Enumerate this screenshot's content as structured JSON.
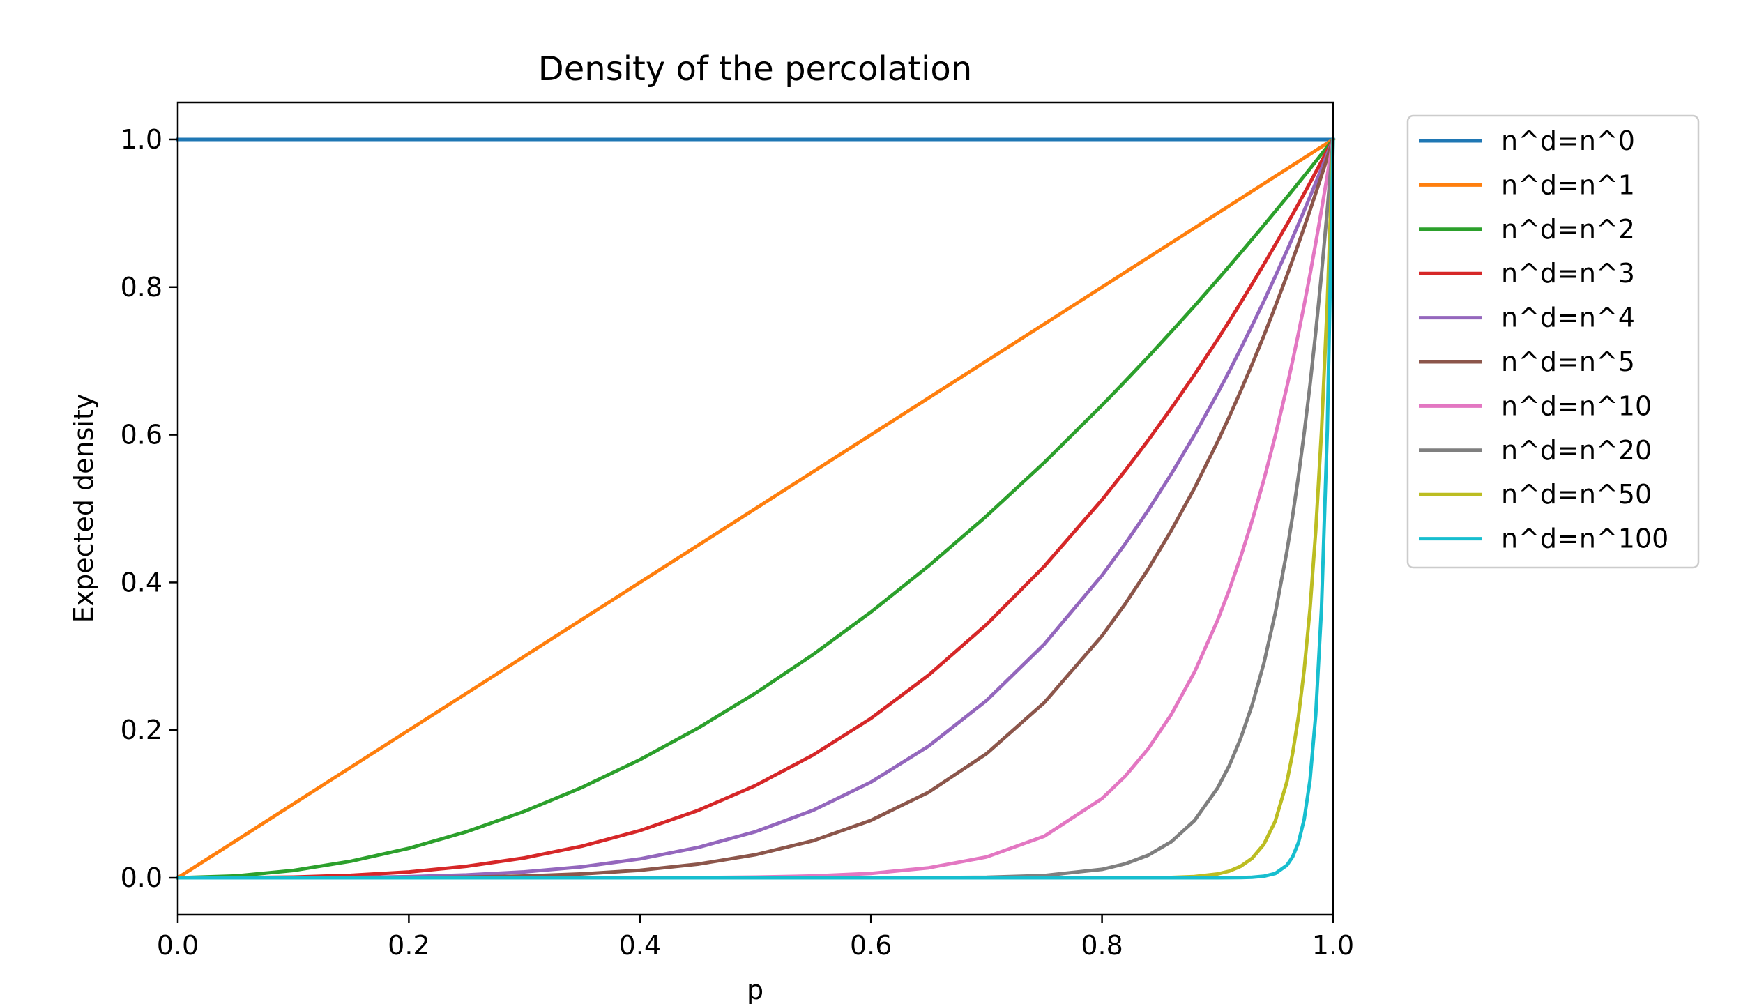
{
  "chart_data": {
    "type": "line",
    "title": "Density of the percolation",
    "xlabel": "p",
    "ylabel": "Expected density",
    "xlim": [
      0.0,
      1.0
    ],
    "ylim": [
      -0.05,
      1.05
    ],
    "x_ticks": [
      {
        "value": 0.0,
        "label": "0.0"
      },
      {
        "value": 0.2,
        "label": "0.2"
      },
      {
        "value": 0.4,
        "label": "0.4"
      },
      {
        "value": 0.6,
        "label": "0.6"
      },
      {
        "value": 0.8,
        "label": "0.8"
      },
      {
        "value": 1.0,
        "label": "1.0"
      }
    ],
    "y_ticks": [
      {
        "value": 0.0,
        "label": "0.0"
      },
      {
        "value": 0.2,
        "label": "0.2"
      },
      {
        "value": 0.4,
        "label": "0.4"
      },
      {
        "value": 0.6,
        "label": "0.6"
      },
      {
        "value": 0.8,
        "label": "0.8"
      },
      {
        "value": 1.0,
        "label": "1.0"
      }
    ],
    "grid": false,
    "legend_position": "outside upper right",
    "x": [
      0.0,
      0.05,
      0.1,
      0.15,
      0.2,
      0.25,
      0.3,
      0.35,
      0.4,
      0.45,
      0.5,
      0.55,
      0.6,
      0.65,
      0.7,
      0.75,
      0.8,
      0.82,
      0.84,
      0.86,
      0.88,
      0.9,
      0.91,
      0.92,
      0.93,
      0.94,
      0.95,
      0.96,
      0.965,
      0.97,
      0.975,
      0.98,
      0.985,
      0.99,
      0.995,
      1.0
    ],
    "series": [
      {
        "name": "n^d=n^0",
        "color": "#1f77b4",
        "values": [
          1,
          1,
          1,
          1,
          1,
          1,
          1,
          1,
          1,
          1,
          1,
          1,
          1,
          1,
          1,
          1,
          1,
          1,
          1,
          1,
          1,
          1,
          1,
          1,
          1,
          1,
          1,
          1,
          1,
          1,
          1,
          1,
          1,
          1,
          1,
          1
        ]
      },
      {
        "name": "n^d=n^1",
        "color": "#ff7f0e",
        "values": [
          0.0,
          0.05,
          0.1,
          0.15,
          0.2,
          0.25,
          0.3,
          0.35,
          0.4,
          0.45,
          0.5,
          0.55,
          0.6,
          0.65,
          0.7,
          0.75,
          0.8,
          0.82,
          0.84,
          0.86,
          0.88,
          0.9,
          0.91,
          0.92,
          0.93,
          0.94,
          0.95,
          0.96,
          0.965,
          0.97,
          0.975,
          0.98,
          0.985,
          0.99,
          0.995,
          1.0
        ]
      },
      {
        "name": "n^d=n^2",
        "color": "#2ca02c",
        "values": [
          0.0,
          0.0025,
          0.01,
          0.0225,
          0.04,
          0.0625,
          0.09,
          0.1225,
          0.16,
          0.2025,
          0.25,
          0.3025,
          0.36,
          0.4225,
          0.49,
          0.5625,
          0.64,
          0.6724,
          0.7056,
          0.7396,
          0.7744,
          0.81,
          0.8281,
          0.8464,
          0.8649,
          0.8836,
          0.9025,
          0.9216,
          0.9312,
          0.9409,
          0.9506,
          0.9604,
          0.9702,
          0.9801,
          0.99,
          1.0
        ]
      },
      {
        "name": "n^d=n^3",
        "color": "#d62728",
        "values": [
          0.0,
          0.0001,
          0.001,
          0.0034,
          0.008,
          0.0156,
          0.027,
          0.0429,
          0.064,
          0.0911,
          0.125,
          0.1664,
          0.216,
          0.2746,
          0.343,
          0.4219,
          0.512,
          0.5514,
          0.5927,
          0.6361,
          0.6815,
          0.729,
          0.7536,
          0.7787,
          0.8044,
          0.8306,
          0.8574,
          0.8847,
          0.8986,
          0.9127,
          0.9269,
          0.9412,
          0.9557,
          0.9703,
          0.9851,
          1.0
        ]
      },
      {
        "name": "n^d=n^4",
        "color": "#9467bd",
        "values": [
          0.0,
          0.0,
          0.0001,
          0.0005,
          0.0016,
          0.0039,
          0.0081,
          0.015,
          0.0256,
          0.041,
          0.0625,
          0.0915,
          0.1296,
          0.1785,
          0.2401,
          0.3164,
          0.4096,
          0.4521,
          0.4979,
          0.547,
          0.5997,
          0.6561,
          0.6857,
          0.7164,
          0.7481,
          0.7807,
          0.8145,
          0.8493,
          0.8672,
          0.8853,
          0.9037,
          0.9224,
          0.9413,
          0.9606,
          0.9801,
          1.0
        ]
      },
      {
        "name": "n^d=n^5",
        "color": "#8c564b",
        "values": [
          0.0,
          0.0,
          0.0,
          0.0001,
          0.0003,
          0.001,
          0.0024,
          0.0053,
          0.0102,
          0.0185,
          0.0313,
          0.0503,
          0.0778,
          0.116,
          0.1681,
          0.2373,
          0.3277,
          0.3707,
          0.4182,
          0.4704,
          0.5277,
          0.5905,
          0.624,
          0.6591,
          0.6957,
          0.7339,
          0.7738,
          0.8154,
          0.8368,
          0.8587,
          0.8811,
          0.9039,
          0.9272,
          0.951,
          0.9752,
          1.0
        ]
      },
      {
        "name": "n^d=n^10",
        "color": "#e377c2",
        "values": [
          0.0,
          0.0,
          0.0,
          0.0,
          0.0,
          0.0,
          0.0,
          0.0,
          0.0001,
          0.0003,
          0.001,
          0.0025,
          0.006,
          0.0135,
          0.0282,
          0.0563,
          0.1074,
          0.1374,
          0.1749,
          0.2213,
          0.2785,
          0.3487,
          0.3894,
          0.4344,
          0.484,
          0.5386,
          0.5987,
          0.6648,
          0.7003,
          0.7374,
          0.7763,
          0.8171,
          0.8597,
          0.9044,
          0.9511,
          1.0
        ]
      },
      {
        "name": "n^d=n^20",
        "color": "#7f7f7f",
        "values": [
          0.0,
          0.0,
          0.0,
          0.0,
          0.0,
          0.0,
          0.0,
          0.0,
          0.0,
          0.0,
          0.0,
          0.0,
          0.0,
          0.0002,
          0.0008,
          0.0032,
          0.0115,
          0.0189,
          0.0306,
          0.049,
          0.0776,
          0.1216,
          0.1516,
          0.1887,
          0.2342,
          0.2901,
          0.3585,
          0.442,
          0.4904,
          0.5438,
          0.6027,
          0.6676,
          0.7391,
          0.8179,
          0.9046,
          1.0
        ]
      },
      {
        "name": "n^d=n^50",
        "color": "#bcbd22",
        "values": [
          0.0,
          0.0,
          0.0,
          0.0,
          0.0,
          0.0,
          0.0,
          0.0,
          0.0,
          0.0,
          0.0,
          0.0,
          0.0,
          0.0,
          0.0,
          0.0,
          0.0,
          0.0,
          0.0002,
          0.0005,
          0.0017,
          0.0052,
          0.009,
          0.0155,
          0.0266,
          0.0453,
          0.0769,
          0.1299,
          0.1689,
          0.2181,
          0.282,
          0.3642,
          0.4698,
          0.605,
          0.7783,
          1.0
        ]
      },
      {
        "name": "n^d=n^100",
        "color": "#17becf",
        "values": [
          0.0,
          0.0,
          0.0,
          0.0,
          0.0,
          0.0,
          0.0,
          0.0,
          0.0,
          0.0,
          0.0,
          0.0,
          0.0,
          0.0,
          0.0,
          0.0,
          0.0,
          0.0,
          0.0,
          0.0,
          0.0,
          0.0,
          0.0001,
          0.0002,
          0.0007,
          0.0021,
          0.0059,
          0.0169,
          0.0285,
          0.0476,
          0.0795,
          0.1326,
          0.2206,
          0.366,
          0.6058,
          1.0
        ]
      }
    ]
  }
}
